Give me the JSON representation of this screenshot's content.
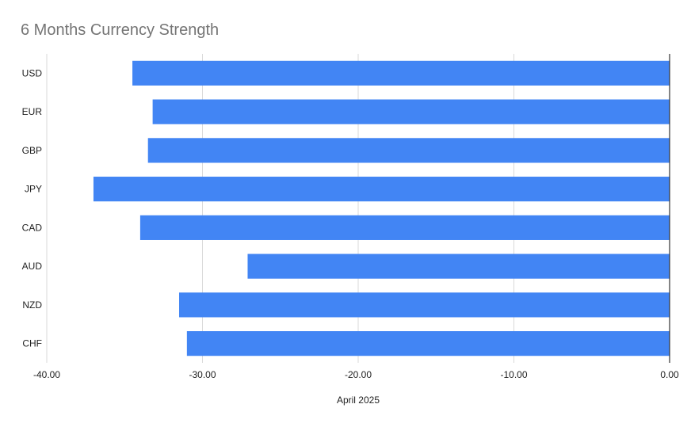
{
  "chart_data": {
    "type": "bar",
    "orientation": "horizontal",
    "title": "6 Months Currency Strength",
    "xlabel": "April 2025",
    "ylabel": "",
    "categories": [
      "USD",
      "EUR",
      "GBP",
      "JPY",
      "CAD",
      "AUD",
      "NZD",
      "CHF"
    ],
    "values": [
      -34.5,
      -33.2,
      -33.5,
      -37.0,
      -34.0,
      -27.1,
      -31.5,
      -31.0
    ],
    "xlim": [
      -40,
      0
    ],
    "xticks": [
      "-40.00",
      "-30.00",
      "-20.00",
      "-10.00",
      "0.00"
    ],
    "grid": true,
    "legend": "none",
    "bar_color": "#4285f4"
  }
}
